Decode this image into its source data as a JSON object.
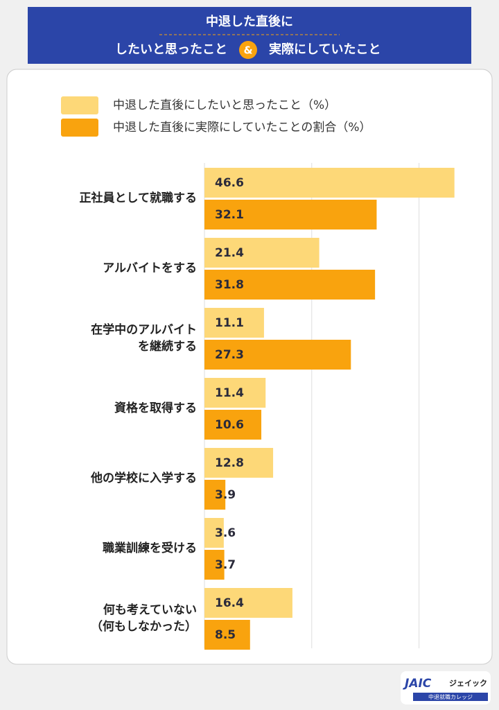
{
  "header": {
    "title_line1": "中退した直後に",
    "title_left": "したいと思ったこと",
    "title_amp": "&",
    "title_right": "実際にしていたこと"
  },
  "chart_data": {
    "type": "grouped-barh",
    "categories": [
      "正社員として就職する",
      "アルバイトをする",
      "在学中のアルバイト\nを継続する",
      "資格を取得する",
      "他の学校に入学する",
      "職業訓練を受ける",
      "何も考えていない\n（何もしなかった）"
    ],
    "series": [
      {
        "name": "中退した直後にしたいと思ったこと（%）",
        "color": "#fdd878",
        "values": [
          46.6,
          21.4,
          11.1,
          11.4,
          12.8,
          3.6,
          16.4
        ]
      },
      {
        "name": "中退した直後に実際にしていたことの割合（%）",
        "color": "#f9a30e",
        "values": [
          32.1,
          31.8,
          27.3,
          10.6,
          3.9,
          3.7,
          8.5
        ]
      }
    ],
    "xlim": [
      0,
      50
    ],
    "xticks": [
      0,
      20,
      40
    ],
    "grid": true
  },
  "logo": {
    "mark": "JAIC",
    "name": "ジェイック",
    "sub": "中退就職カレッジ"
  }
}
